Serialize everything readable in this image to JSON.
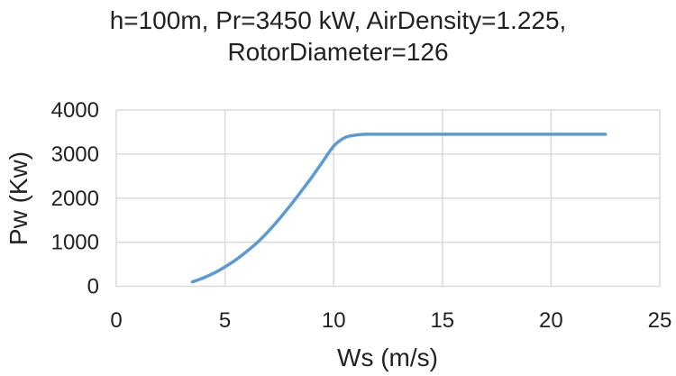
{
  "chart_data": {
    "type": "line",
    "title_lines": [
      "h=100m, Pr=3450 kW, AirDensity=1.225,",
      "RotorDiameter=126"
    ],
    "xlabel": "Ws (m/s)",
    "ylabel": "Pw (Kw)",
    "xlim": [
      0,
      25
    ],
    "ylim": [
      0,
      4000
    ],
    "xticks": [
      0,
      5,
      10,
      15,
      20,
      25
    ],
    "yticks": [
      0,
      1000,
      2000,
      3000,
      4000
    ],
    "grid": true,
    "series": [
      {
        "name": "Pw",
        "color": "#5b9bd5",
        "x": [
          3.5,
          4,
          4.5,
          5,
          5.5,
          6,
          6.5,
          7,
          7.5,
          8,
          8.5,
          9,
          9.5,
          10,
          10.5,
          11,
          11.5,
          12,
          14,
          16,
          18,
          20,
          22,
          22.5
        ],
        "y": [
          100,
          190,
          300,
          440,
          600,
          790,
          1000,
          1250,
          1530,
          1830,
          2150,
          2480,
          2830,
          3180,
          3370,
          3430,
          3450,
          3450,
          3450,
          3450,
          3450,
          3450,
          3450,
          3450
        ]
      }
    ]
  }
}
